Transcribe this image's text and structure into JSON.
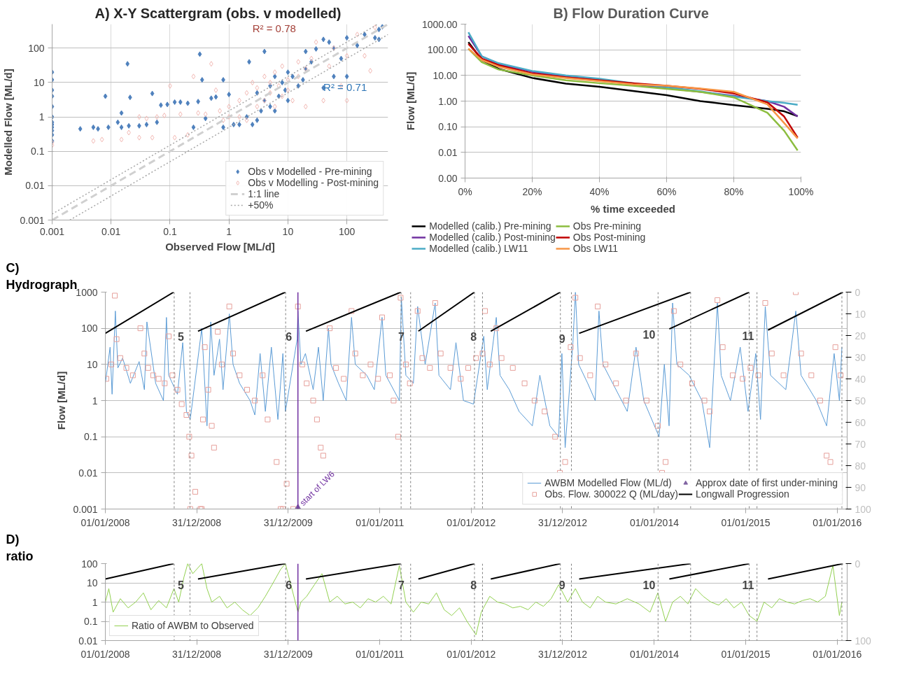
{
  "chart_data": [
    {
      "type": "scatter",
      "title": "A)  X-Y Scattergram (obs. v modelled)",
      "xlabel": "Observed Flow [ML/d]",
      "ylabel": "Modelled Flow [ML/d]",
      "log": "xy",
      "xlim": [
        0.001,
        500
      ],
      "ylim": [
        0.001,
        500
      ],
      "xticks": [
        0.001,
        0.01,
        0.1,
        1,
        10,
        100
      ],
      "yticks": [
        0.001,
        0.01,
        0.1,
        1,
        10,
        100
      ],
      "grid": true,
      "legend": "bottom right",
      "annotations": [
        "R² = 0.78",
        "R² = 0.71"
      ],
      "series": [
        {
          "name": "Obs v Modelled - Pre-mining",
          "type": "scatter",
          "marker": "diamond",
          "color": "#4f81bd",
          "x": [
            0.001,
            0.001,
            0.001,
            0.001,
            0.001,
            0.001,
            0.001,
            0.001,
            0.001,
            0.001,
            0.001,
            0.001,
            0.003,
            0.005,
            0.006,
            0.008,
            0.009,
            0.013,
            0.015,
            0.015,
            0.019,
            0.02,
            0.021,
            0.03,
            0.04,
            0.05,
            0.06,
            0.07,
            0.09,
            0.12,
            0.15,
            0.2,
            0.25,
            0.3,
            0.32,
            0.35,
            0.4,
            0.5,
            0.6,
            0.8,
            0.8,
            1,
            1.2,
            1.5,
            2,
            2.2,
            2.5,
            3,
            3,
            3.5,
            4,
            4,
            5,
            5,
            6,
            6,
            7,
            8,
            9,
            10,
            10,
            12,
            15,
            18,
            20,
            20,
            25,
            30,
            40,
            40,
            50,
            60,
            60,
            80,
            100,
            100,
            150,
            200,
            300,
            350,
            350,
            400
          ],
          "values": [
            0.2,
            0.3,
            0.4,
            0.5,
            0.6,
            0.7,
            1,
            2,
            4,
            6,
            12,
            20,
            0.45,
            0.5,
            0.45,
            4,
            0.5,
            0.7,
            0.5,
            1.3,
            35,
            0.55,
            3.7,
            0.55,
            0.6,
            4.8,
            0.7,
            2.2,
            2.3,
            2.7,
            2.7,
            2.5,
            0.5,
            2.8,
            67,
            12,
            0.9,
            3.5,
            3.8,
            12,
            0.5,
            4.5,
            0.6,
            0.6,
            1,
            40,
            0.6,
            0.8,
            5,
            1.5,
            80,
            3,
            2,
            8,
            15,
            1.5,
            4,
            10,
            6,
            3,
            20,
            15,
            8,
            12,
            25,
            80,
            40,
            95,
            7,
            180,
            150,
            100,
            15,
            50,
            15,
            200,
            120,
            250,
            200,
            350,
            180,
            420
          ]
        },
        {
          "name": "Obs v Modelling - Post-mining",
          "type": "scatter",
          "marker": "diamond",
          "color": "#f2b8b3",
          "x": [
            0.001,
            0.001,
            0.005,
            0.007,
            0.015,
            0.02,
            0.03,
            0.03,
            0.04,
            0.05,
            0.06,
            0.08,
            0.1,
            0.12,
            0.15,
            0.2,
            0.25,
            0.3,
            0.4,
            0.5,
            0.6,
            0.7,
            0.8,
            1,
            1,
            1.5,
            1.5,
            2,
            2,
            2.5,
            3,
            3,
            4,
            4,
            5,
            5,
            6,
            6,
            7,
            8,
            8,
            10,
            10,
            12,
            15,
            15,
            20,
            20,
            25,
            30,
            40,
            50,
            60,
            80,
            100,
            100,
            150,
            200,
            250,
            300
          ],
          "values": [
            0.15,
            0.18,
            0.2,
            0.22,
            0.22,
            0.35,
            0.25,
            1.0,
            0.9,
            0.25,
            1,
            1.1,
            8,
            0.25,
            1.2,
            0.3,
            15,
            1.3,
            1.2,
            35,
            6,
            1.5,
            0.8,
            1,
            2,
            3,
            1,
            5,
            0.8,
            10,
            2,
            7,
            15,
            3,
            10,
            5,
            20,
            2,
            8,
            30,
            4,
            12,
            6,
            3,
            15,
            40,
            25,
            2,
            50,
            150,
            3,
            30,
            100,
            8,
            60,
            3,
            250,
            60,
            22,
            400
          ]
        },
        {
          "name": "1:1 line",
          "type": "line",
          "line_style": "dashed",
          "color": "#d0d0d0",
          "x": [
            0.001,
            500
          ],
          "values": [
            0.001,
            500
          ]
        },
        {
          "name": "+50%",
          "type": "line",
          "line_style": "dotted",
          "color": "#a6a6a6",
          "x": [
            0.001,
            333,
            null,
            0.002,
            500
          ],
          "values": [
            0.0015,
            500,
            null,
            0.001,
            250
          ]
        }
      ]
    },
    {
      "type": "line",
      "title": "B)  Flow Duration Curve",
      "xlabel": "% time exceeded",
      "ylabel": "Flow [ML/d]",
      "log": "y",
      "xlim": [
        0,
        100
      ],
      "ylim": [
        0.001,
        1000
      ],
      "xticks": [
        {
          "value": 0,
          "label": "0%"
        },
        {
          "value": 20,
          "label": "20%"
        },
        {
          "value": 40,
          "label": "40%"
        },
        {
          "value": 60,
          "label": "60%"
        },
        {
          "value": 80,
          "label": "80%"
        },
        {
          "value": 100,
          "label": "100%"
        }
      ],
      "yticks": [
        {
          "value": 0.001,
          "label": "0.00"
        },
        {
          "value": 0.01,
          "label": "0.01"
        },
        {
          "value": 0.1,
          "label": "0.10"
        },
        {
          "value": 1,
          "label": "1.00"
        },
        {
          "value": 10,
          "label": "10.00"
        },
        {
          "value": 100,
          "label": "100.00"
        },
        {
          "value": 1000,
          "label": "1000.00"
        }
      ],
      "grid": true,
      "legend": "bottom",
      "x": [
        1,
        5,
        10,
        20,
        30,
        40,
        50,
        60,
        70,
        80,
        90,
        95,
        99
      ],
      "series": [
        {
          "name": "Modelled (calib.) Pre-mining",
          "color": "#000000",
          "values": [
            200,
            40,
            18,
            8,
            4.8,
            3.6,
            2.5,
            1.7,
            1.0,
            0.7,
            0.5,
            0.4,
            0.26
          ]
        },
        {
          "name": "Modelled (calib.) Post-mining",
          "color": "#7030a0",
          "values": [
            350,
            55,
            28,
            14,
            9,
            6.5,
            4.5,
            3.2,
            2.3,
            1.6,
            1.0,
            0.6,
            0.25
          ]
        },
        {
          "name": "Modelled (calib.) LW11",
          "color": "#4bacc6",
          "values": [
            480,
            55,
            30,
            15,
            10,
            7.5,
            5,
            3.5,
            2.4,
            1.5,
            1.0,
            0.85,
            0.72
          ]
        },
        {
          "name": "Obs Pre-mining",
          "color": "#8cbd3f",
          "values": [
            110,
            33,
            17,
            10,
            6.5,
            5,
            4,
            3,
            2.3,
            1.4,
            0.35,
            0.07,
            0.012
          ]
        },
        {
          "name": "Obs Post-mining",
          "color": "#c00000",
          "values": [
            170,
            45,
            25,
            12,
            8.5,
            6.5,
            5,
            4,
            3,
            2,
            0.9,
            0.25,
            0.038
          ]
        },
        {
          "name": "Obs LW11",
          "color": "#f79646",
          "values": [
            110,
            40,
            22,
            11,
            8,
            6,
            4.5,
            4,
            3.1,
            2.3,
            0.75,
            0.14,
            0.035
          ]
        }
      ]
    },
    {
      "type": "line",
      "title": "C)",
      "subtitle": "Hydrograph",
      "ylabel": "Flow [ML/d]",
      "log": "y",
      "xlim": [
        "2008-01-01",
        "2016-02-10"
      ],
      "ylim": [
        0.001,
        1000
      ],
      "y2lim": [
        100,
        0
      ],
      "xticks": [
        {
          "value": "2008-01-01",
          "label": "01/01/2008"
        },
        {
          "value": "2008-12-31",
          "label": "31/12/2008"
        },
        {
          "value": "2009-12-31",
          "label": "31/12/2009"
        },
        {
          "value": "2011-01-01",
          "label": "01/01/2011"
        },
        {
          "value": "2012-01-01",
          "label": "01/01/2012"
        },
        {
          "value": "2012-12-31",
          "label": "31/12/2012"
        },
        {
          "value": "2014-01-01",
          "label": "01/01/2014"
        },
        {
          "value": "2015-01-01",
          "label": "01/01/2015"
        },
        {
          "value": "2016-01-01",
          "label": "01/01/2016"
        }
      ],
      "yticks": [
        0.001,
        0.01,
        0.1,
        1,
        10,
        100,
        1000
      ],
      "y2ticks": [
        0,
        10,
        20,
        30,
        40,
        50,
        60,
        70,
        80,
        90,
        100
      ],
      "grid": "y",
      "legend": "bottom right",
      "annotations": [
        "5",
        "6",
        "7",
        "8",
        "9",
        "10",
        "11"
      ],
      "ref_lines": [
        {
          "axis": "x",
          "value": "2008-10-02",
          "line_style": "dashed",
          "color": "#7f7f7f"
        },
        {
          "axis": "x",
          "value": "2008-12-04",
          "line_style": "dashed",
          "color": "#7f7f7f"
        },
        {
          "axis": "x",
          "value": "2009-12-21",
          "line_style": "dashed",
          "color": "#7f7f7f"
        },
        {
          "axis": "x",
          "value": "2011-03-27",
          "line_style": "dashed",
          "color": "#7f7f7f"
        },
        {
          "axis": "x",
          "value": "2011-05-04",
          "line_style": "dashed",
          "color": "#7f7f7f"
        },
        {
          "axis": "x",
          "value": "2012-01-14",
          "line_style": "dashed",
          "color": "#7f7f7f"
        },
        {
          "axis": "x",
          "value": "2012-02-15",
          "line_style": "dashed",
          "color": "#7f7f7f"
        },
        {
          "axis": "x",
          "value": "2012-12-22",
          "line_style": "dashed",
          "color": "#7f7f7f"
        },
        {
          "axis": "x",
          "value": "2013-02-04",
          "line_style": "dashed",
          "color": "#7f7f7f"
        },
        {
          "axis": "x",
          "value": "2014-01-16",
          "line_style": "dashed",
          "color": "#7f7f7f"
        },
        {
          "axis": "x",
          "value": "2014-05-26",
          "line_style": "dashed",
          "color": "#7f7f7f"
        },
        {
          "axis": "x",
          "value": "2015-01-15",
          "line_style": "dashed",
          "color": "#7f7f7f"
        },
        {
          "axis": "x",
          "value": "2015-02-15",
          "line_style": "dashed",
          "color": "#7f7f7f"
        },
        {
          "axis": "x",
          "value": "2016-01-20",
          "line_style": "dashed",
          "color": "#7f7f7f"
        },
        {
          "axis": "x",
          "value": "2010-02-08",
          "label": "start of LW6",
          "line_style": "solid",
          "color": "#7030a0"
        }
      ],
      "series": [
        {
          "name": "AWBM Modelled Flow (ML/d)",
          "type": "line",
          "color": "#5b9bd5",
          "x": [
            "2008-01-01",
            "2008-01-20",
            "2008-01-28",
            "2008-02-10",
            "2008-02-20",
            "2008-03-10",
            "2008-04-10",
            "2008-05-15",
            "2008-06-05",
            "2008-06-15",
            "2008-07-20",
            "2008-08-20",
            "2008-09-01",
            "2008-09-10",
            "2008-10-15",
            "2008-11-05",
            "2008-11-20",
            "2008-12-05",
            "2009-01-20",
            "2009-02-10",
            "2009-02-25",
            "2009-03-10",
            "2009-04-01",
            "2009-04-15",
            "2009-05-10",
            "2009-05-25",
            "2009-06-20",
            "2009-08-01",
            "2009-08-20",
            "2009-09-10",
            "2009-10-01",
            "2009-10-25",
            "2009-11-20",
            "2009-12-10",
            "2009-12-20",
            "2010-02-05",
            "2010-02-08",
            "2010-02-20",
            "2010-03-10",
            "2010-04-10",
            "2010-05-01",
            "2010-05-20",
            "2010-06-10",
            "2010-06-20",
            "2010-07-20",
            "2010-08-20",
            "2010-09-10",
            "2010-09-25",
            "2010-11-10",
            "2010-12-10",
            "2011-01-10",
            "2011-01-25",
            "2011-03-20",
            "2011-03-28",
            "2011-04-15",
            "2011-05-15",
            "2011-06-01",
            "2011-07-01",
            "2011-08-10",
            "2011-08-25",
            "2011-10-10",
            "2011-11-01",
            "2011-12-01",
            "2012-01-10",
            "2012-02-20",
            "2012-03-05",
            "2012-04-10",
            "2012-04-25",
            "2012-06-01",
            "2012-07-10",
            "2012-09-01",
            "2012-10-01",
            "2012-11-10",
            "2012-12-15",
            "2012-12-28",
            "2013-01-10",
            "2013-02-10",
            "2013-02-20",
            "2013-03-05",
            "2013-04-10",
            "2013-05-10",
            "2013-05-25",
            "2013-06-10",
            "2013-08-01",
            "2013-09-15",
            "2013-10-20",
            "2013-11-20",
            "2014-01-20",
            "2014-02-10",
            "2014-03-01",
            "2014-03-15",
            "2014-04-01",
            "2014-05-20",
            "2014-07-10",
            "2014-08-10",
            "2014-09-10",
            "2014-09-25",
            "2014-11-01",
            "2014-12-10",
            "2015-01-10",
            "2015-02-10",
            "2015-03-01",
            "2015-03-20",
            "2015-04-10",
            "2015-06-10",
            "2015-07-20",
            "2015-08-10",
            "2015-10-10",
            "2015-11-20",
            "2015-12-20",
            "2016-01-10",
            "2016-01-20"
          ],
          "values": [
            3,
            30,
            1.5,
            300,
            8,
            15,
            3,
            12,
            2,
            150,
            3,
            1,
            200,
            5,
            1.5,
            40,
            0.5,
            0.3,
            100,
            0.2,
            150,
            5,
            50,
            2,
            250,
            10,
            3,
            1,
            0.4,
            20,
            0.5,
            30,
            0.3,
            20,
            0.5,
            50,
            300,
            10,
            20,
            2,
            30,
            1,
            100,
            10,
            3,
            1,
            200,
            10,
            5,
            2,
            200,
            5,
            1,
            700,
            5,
            3,
            400,
            10,
            500,
            5,
            2,
            40,
            1,
            0.8,
            60,
            2,
            200,
            5,
            2,
            0.5,
            0.2,
            5,
            0.2,
            0.1,
            20,
            0.05,
            40,
            1000,
            10,
            3,
            1,
            300,
            10,
            2,
            0.5,
            30,
            1,
            0.1,
            10,
            0.2,
            500,
            10,
            5,
            1,
            0.05,
            500,
            5,
            1,
            30,
            0.5,
            20,
            0.3,
            400,
            5,
            2,
            300,
            5,
            1,
            0.2,
            20,
            1,
            30
          ]
        },
        {
          "name": "Obs. Flow. 300022 Q (ML/day)",
          "type": "scatter",
          "marker": "square",
          "color": "#e6a09b",
          "x": [
            "2008-01-05",
            "2008-01-25",
            "2008-02-08",
            "2008-02-15",
            "2008-03-01",
            "2008-03-25",
            "2008-04-20",
            "2008-05-20",
            "2008-06-05",
            "2008-06-20",
            "2008-07-10",
            "2008-08-01",
            "2008-08-25",
            "2008-09-10",
            "2008-09-25",
            "2008-10-15",
            "2008-11-01",
            "2008-11-20",
            "2008-12-01",
            "2008-12-10",
            "2008-12-25",
            "2008-12-05",
            "2009-01-15",
            "2009-01-20",
            "2009-01-25",
            "2009-02-01",
            "2009-02-15",
            "2009-03-01",
            "2009-03-10",
            "2009-03-25",
            "2009-04-10",
            "2009-05-10",
            "2009-05-25",
            "2009-06-20",
            "2009-07-20",
            "2009-08-20",
            "2009-09-20",
            "2009-10-10",
            "2009-11-15",
            "2009-12-01",
            "2009-12-10",
            "2009-12-25",
            "2010-01-20",
            "2010-02-08",
            "2010-02-25",
            "2010-03-15",
            "2010-04-10",
            "2010-04-25",
            "2010-05-10",
            "2010-05-20",
            "2010-06-15",
            "2010-07-10",
            "2010-08-10",
            "2010-09-10",
            "2010-09-25",
            "2010-10-25",
            "2010-11-25",
            "2010-12-25",
            "2011-01-10",
            "2011-02-10",
            "2011-02-25",
            "2011-03-15",
            "2011-03-25",
            "2011-04-15",
            "2011-05-01",
            "2011-06-01",
            "2011-06-20",
            "2011-07-20",
            "2011-08-10",
            "2011-09-01",
            "2011-10-10",
            "2011-11-20",
            "2011-12-20",
            "2012-01-20",
            "2012-02-15",
            "2012-02-25",
            "2012-03-15",
            "2012-04-10",
            "2012-05-01",
            "2012-06-15",
            "2012-08-01",
            "2012-09-10",
            "2012-10-20",
            "2012-12-01",
            "2012-12-20",
            "2013-01-10",
            "2013-02-01",
            "2013-02-20",
            "2013-03-10",
            "2013-04-20",
            "2013-05-20",
            "2013-06-20",
            "2013-08-01",
            "2013-09-10",
            "2013-10-20",
            "2013-12-01",
            "2014-01-15",
            "2014-02-01",
            "2014-02-15",
            "2014-03-20",
            "2014-04-15",
            "2014-06-01",
            "2014-07-20",
            "2014-08-10",
            "2014-09-10",
            "2014-10-01",
            "2014-11-10",
            "2014-12-20",
            "2015-01-20",
            "2015-02-20",
            "2015-03-20",
            "2015-04-15",
            "2015-06-01",
            "2015-07-20",
            "2015-08-10",
            "2015-09-20",
            "2015-10-25",
            "2015-11-20",
            "2015-12-05",
            "2015-12-25",
            "2016-01-15"
          ],
          "values": [
            4,
            10,
            800,
            50,
            15,
            8,
            5,
            100,
            20,
            8,
            5,
            4,
            3,
            60,
            5,
            2,
            0.8,
            0.4,
            0.1,
            0.03,
            0.003,
            0.001,
            0.001,
            0.001,
            0.3,
            30,
            2,
            0.2,
            0.05,
            80,
            10,
            400,
            20,
            5,
            2,
            1,
            5,
            0.3,
            0.02,
            0.001,
            0.001,
            0.005,
            0.001,
            400,
            10,
            3,
            1,
            0.3,
            0.05,
            0.03,
            100,
            8,
            4,
            300,
            20,
            5,
            10,
            4,
            200,
            5,
            1,
            0.1,
            700,
            10,
            3,
            300,
            15,
            8,
            500,
            20,
            8,
            4,
            8,
            15,
            20,
            300,
            10,
            100,
            15,
            8,
            3,
            1,
            0.5,
            0.1,
            0.01,
            0.02,
            30,
            700,
            15,
            5,
            400,
            10,
            3,
            1,
            20,
            1,
            0.2,
            0.01,
            0.02,
            300,
            10,
            3,
            1,
            0.5,
            600,
            30,
            5,
            4,
            8,
            5,
            500,
            20,
            5,
            1000,
            20,
            5,
            1,
            0.03,
            0.02,
            30,
            5
          ]
        },
        {
          "name": "Approx date of first under-mining",
          "type": "scatter",
          "marker": "triangle",
          "color": "#8064a2",
          "x": [
            "2010-02-08"
          ],
          "values": [
            0.001
          ]
        },
        {
          "name": "Longwall Progression",
          "type": "line",
          "axis": "y2",
          "color": "#000000",
          "x": [
            "2008-01-01",
            "2008-09-30",
            null,
            "2009-01-05",
            "2009-12-20",
            null,
            "2010-03-12",
            "2011-03-26",
            null,
            "2011-06-04",
            "2012-01-14",
            null,
            "2012-03-19",
            "2012-12-22",
            null,
            "2013-03-07",
            "2014-05-26",
            null,
            "2014-03-02",
            "2015-01-15",
            null,
            "2015-03-31",
            "2016-01-24"
          ],
          "values": [
            19,
            0,
            null,
            18,
            0,
            null,
            18,
            0,
            null,
            18,
            0,
            null,
            18,
            0,
            null,
            19,
            0,
            null,
            17,
            0,
            null,
            17.5,
            0
          ]
        }
      ]
    },
    {
      "type": "line",
      "title": "D)",
      "subtitle": "ratio",
      "log": "y",
      "xlim": [
        "2008-01-01",
        "2016-02-10"
      ],
      "ylim": [
        0.01,
        100
      ],
      "y2lim": [
        100,
        0
      ],
      "xticks": [
        {
          "value": "2008-01-01",
          "label": "01/01/2008"
        },
        {
          "value": "2008-12-31",
          "label": "31/12/2008"
        },
        {
          "value": "2009-12-31",
          "label": "31/12/2009"
        },
        {
          "value": "2011-01-01",
          "label": "01/01/2011"
        },
        {
          "value": "2012-01-01",
          "label": "01/01/2012"
        },
        {
          "value": "2012-12-31",
          "label": "31/12/2012"
        },
        {
          "value": "2014-01-01",
          "label": "01/01/2014"
        },
        {
          "value": "2015-01-01",
          "label": "01/01/2015"
        },
        {
          "value": "2016-01-01",
          "label": "01/01/2016"
        }
      ],
      "yticks": [
        0.01,
        0.1,
        1,
        10,
        100
      ],
      "y2ticks": [
        0,
        100
      ],
      "grid": "y",
      "legend": "bottom left",
      "annotations": [
        "5",
        "6",
        "7",
        "8",
        "9",
        "10",
        "11"
      ],
      "ref_lines": [
        {
          "axis": "x",
          "value": "2008-10-02",
          "line_style": "dashed",
          "color": "#7f7f7f"
        },
        {
          "axis": "x",
          "value": "2008-12-04",
          "line_style": "dashed",
          "color": "#7f7f7f"
        },
        {
          "axis": "x",
          "value": "2009-12-21",
          "line_style": "dashed",
          "color": "#7f7f7f"
        },
        {
          "axis": "x",
          "value": "2011-03-27",
          "line_style": "dashed",
          "color": "#7f7f7f"
        },
        {
          "axis": "x",
          "value": "2011-05-04",
          "line_style": "dashed",
          "color": "#7f7f7f"
        },
        {
          "axis": "x",
          "value": "2012-01-14",
          "line_style": "dashed",
          "color": "#7f7f7f"
        },
        {
          "axis": "x",
          "value": "2012-02-15",
          "line_style": "dashed",
          "color": "#7f7f7f"
        },
        {
          "axis": "x",
          "value": "2012-12-22",
          "line_style": "dashed",
          "color": "#7f7f7f"
        },
        {
          "axis": "x",
          "value": "2013-02-04",
          "line_style": "dashed",
          "color": "#7f7f7f"
        },
        {
          "axis": "x",
          "value": "2014-01-16",
          "line_style": "dashed",
          "color": "#7f7f7f"
        },
        {
          "axis": "x",
          "value": "2014-05-26",
          "line_style": "dashed",
          "color": "#7f7f7f"
        },
        {
          "axis": "x",
          "value": "2015-01-15",
          "line_style": "dashed",
          "color": "#7f7f7f"
        },
        {
          "axis": "x",
          "value": "2015-02-15",
          "line_style": "dashed",
          "color": "#7f7f7f"
        },
        {
          "axis": "x",
          "value": "2016-01-20",
          "line_style": "dashed",
          "color": "#7f7f7f"
        },
        {
          "axis": "x",
          "value": "2010-02-08",
          "line_style": "solid",
          "color": "#7030a0"
        }
      ],
      "series": [
        {
          "name": "Ratio of AWBM to Observed",
          "type": "line",
          "color": "#92d050",
          "x": [
            "2008-01-01",
            "2008-01-15",
            "2008-02-01",
            "2008-03-01",
            "2008-04-01",
            "2008-05-01",
            "2008-06-01",
            "2008-07-01",
            "2008-08-01",
            "2008-09-01",
            "2008-10-01",
            "2008-10-20",
            "2008-11-10",
            "2008-11-25",
            "2008-12-15",
            "2009-01-20",
            "2009-02-10",
            "2009-03-01",
            "2009-04-01",
            "2009-05-01",
            "2009-06-01",
            "2009-07-01",
            "2009-08-01",
            "2009-09-01",
            "2009-10-01",
            "2009-11-01",
            "2009-12-01",
            "2009-12-20",
            "2010-02-08",
            "2010-02-20",
            "2010-03-15",
            "2010-04-15",
            "2010-05-15",
            "2010-06-15",
            "2010-07-15",
            "2010-08-15",
            "2010-09-15",
            "2010-10-15",
            "2010-11-15",
            "2010-12-15",
            "2011-01-15",
            "2011-02-15",
            "2011-03-20",
            "2011-04-15",
            "2011-05-15",
            "2011-06-15",
            "2011-07-15",
            "2011-08-15",
            "2011-09-15",
            "2011-10-15",
            "2011-11-15",
            "2011-12-15",
            "2012-01-20",
            "2012-02-10",
            "2012-03-15",
            "2012-04-15",
            "2012-05-15",
            "2012-06-15",
            "2012-07-15",
            "2012-08-15",
            "2012-09-15",
            "2012-10-15",
            "2012-11-15",
            "2012-12-15",
            "2013-01-20",
            "2013-02-20",
            "2013-03-20",
            "2013-04-20",
            "2013-05-20",
            "2013-06-20",
            "2013-08-01",
            "2013-09-15",
            "2013-11-01",
            "2013-12-15",
            "2014-01-15",
            "2014-02-15",
            "2014-03-15",
            "2014-04-15",
            "2014-05-15",
            "2014-06-15",
            "2014-07-15",
            "2014-08-15",
            "2014-09-15",
            "2014-10-15",
            "2014-11-15",
            "2014-12-15",
            "2015-01-15",
            "2015-02-15",
            "2015-03-15",
            "2015-04-15",
            "2015-05-15",
            "2015-06-15",
            "2015-07-15",
            "2015-08-15",
            "2015-09-15",
            "2015-10-15",
            "2015-11-15",
            "2015-12-15",
            "2016-01-10",
            "2016-01-20"
          ],
          "values": [
            1,
            5,
            0.3,
            1.5,
            0.5,
            1,
            3,
            0.4,
            1.2,
            0.5,
            5,
            1,
            20,
            100,
            30,
            100,
            5,
            1,
            2,
            0.5,
            1,
            0.4,
            0.2,
            0.5,
            2,
            10,
            50,
            100,
            0.3,
            1,
            2,
            8,
            30,
            1,
            2,
            0.8,
            1,
            0.5,
            1.5,
            1,
            2,
            0.8,
            80,
            1,
            0.3,
            1,
            0.8,
            3,
            0.4,
            0.2,
            0.5,
            0.1,
            0.02,
            0.3,
            2,
            1,
            0.8,
            0.5,
            0.6,
            0.4,
            1,
            0.6,
            1.5,
            8,
            1,
            5,
            1,
            0.5,
            2,
            1,
            0.8,
            1.5,
            0.8,
            0.3,
            3,
            0.1,
            1,
            2,
            0.8,
            5,
            2,
            1,
            0.7,
            1.5,
            0.5,
            1,
            0.2,
            0.1,
            1,
            0.5,
            1.5,
            1,
            0.8,
            1.2,
            1.5,
            1,
            2,
            80,
            0.2,
            1
          ]
        },
        {
          "type": "line",
          "axis": "y2",
          "color": "#000000",
          "x": [
            "2008-01-01",
            "2008-09-30",
            null,
            "2009-01-05",
            "2009-12-20",
            null,
            "2010-03-12",
            "2011-03-26",
            null,
            "2011-06-04",
            "2012-01-14",
            null,
            "2012-03-19",
            "2012-12-22",
            null,
            "2013-03-07",
            "2014-05-26",
            null,
            "2014-03-02",
            "2015-01-15",
            null,
            "2015-03-31",
            "2016-01-24"
          ],
          "values": [
            20,
            0,
            null,
            20,
            0,
            null,
            20,
            0,
            null,
            20,
            0,
            null,
            20,
            0,
            null,
            20,
            0,
            null,
            20,
            0,
            null,
            20,
            0
          ]
        }
      ]
    }
  ]
}
